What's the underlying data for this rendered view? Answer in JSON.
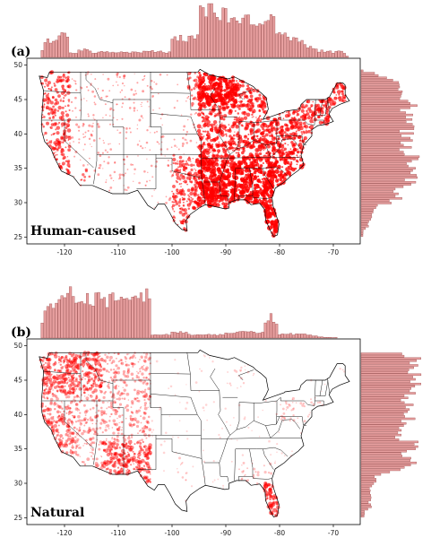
{
  "colors": {
    "fire": "#ff0000",
    "hist_bar": "#e8a0a0",
    "hist_edge": "#a05050",
    "border": "#000000"
  },
  "panels": [
    {
      "tag": "(a)",
      "title": "Human-caused",
      "density": "high-east",
      "xticks": [
        "-120",
        "-110",
        "-100",
        "-90",
        "-80",
        "-70"
      ],
      "xtick_values": [
        -120,
        -110,
        -100,
        -90,
        -80,
        -70
      ],
      "yticks": [
        "50",
        "45",
        "40",
        "35",
        "30",
        "25"
      ],
      "ytick_values": [
        50,
        45,
        40,
        35,
        30,
        25
      ],
      "xlim": [
        -127,
        -65
      ],
      "ylim": [
        24,
        51
      ]
    },
    {
      "tag": "(b)",
      "title": "Natural",
      "density": "high-west",
      "xticks": [
        "-120",
        "-110",
        "-100",
        "-90",
        "-80",
        "-70"
      ],
      "xtick_values": [
        -120,
        -110,
        -100,
        -90,
        -80,
        -70
      ],
      "yticks": [
        "50",
        "45",
        "40",
        "35",
        "30",
        "25"
      ],
      "ytick_values": [
        50,
        45,
        40,
        35,
        30,
        25
      ],
      "xlim": [
        -127,
        -65
      ],
      "ylim": [
        24,
        51
      ]
    }
  ]
}
